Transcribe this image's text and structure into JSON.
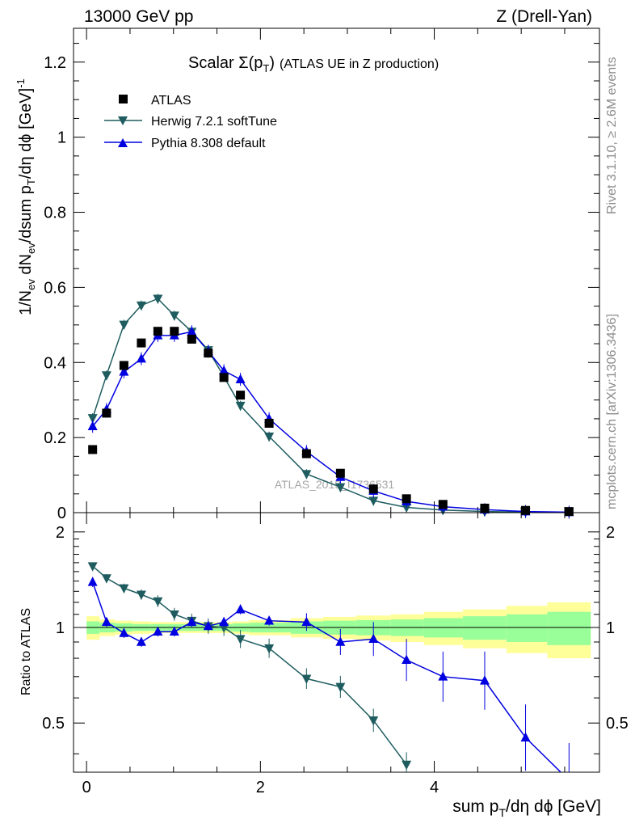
{
  "header": {
    "left": "13000 GeV pp",
    "right": "Z (Drell-Yan)"
  },
  "side_labels": {
    "rivet": "Rivet 3.1.10, ≥ 2.6M events",
    "mcplots": "mcplots.cern.ch [arXiv:1306.3436]"
  },
  "watermark": "ATLAS_2019_I1736531",
  "colors": {
    "atlas": "#000000",
    "herwig": "#1e5c5f",
    "pythia": "#0000e0",
    "band_stat": "#99ff99",
    "band_total": "#ffff99"
  },
  "chart_data": [
    {
      "type": "scatter",
      "title": "Scalar Σ(p_T) (ATLAS UE in Z production)",
      "xlabel": "sum p_T/dη dϕ [GeV]",
      "ylabel": "1/N_ev dN_ev/dsum p_T/dη dϕ [GeV]^-1",
      "xlim": [
        -0.15,
        5.9
      ],
      "ylim": [
        0,
        1.29
      ],
      "x_ticks": [
        "0",
        "2",
        "4"
      ],
      "y_ticks": [
        "0",
        "0.2",
        "0.4",
        "0.6",
        "0.8",
        "1",
        "1.2"
      ],
      "legend_position": "top-left",
      "series": [
        {
          "name": "ATLAS",
          "marker": "square",
          "x": [
            0.07,
            0.23,
            0.43,
            0.63,
            0.82,
            1.01,
            1.21,
            1.4,
            1.58,
            1.77,
            2.1,
            2.53,
            2.92,
            3.3,
            3.68,
            4.1,
            4.58,
            5.05,
            5.55
          ],
          "y": [
            0.168,
            0.265,
            0.392,
            0.452,
            0.483,
            0.483,
            0.462,
            0.425,
            0.36,
            0.313,
            0.238,
            0.157,
            0.105,
            0.063,
            0.037,
            0.022,
            0.012,
            0.006,
            0.003
          ]
        },
        {
          "name": "Herwig 7.2.1 softTune",
          "marker": "triangle-down",
          "x": [
            0.07,
            0.23,
            0.43,
            0.63,
            0.82,
            1.01,
            1.21,
            1.4,
            1.58,
            1.77,
            2.1,
            2.53,
            2.92,
            3.3,
            3.68,
            4.1,
            4.58,
            5.05,
            5.55
          ],
          "y": [
            0.252,
            0.366,
            0.501,
            0.552,
            0.57,
            0.525,
            0.482,
            0.433,
            0.362,
            0.285,
            0.203,
            0.103,
            0.068,
            0.032,
            0.014,
            0.007,
            0.003,
            0.0015,
            0.0006
          ]
        },
        {
          "name": "Pythia 8.308 default",
          "marker": "triangle-up",
          "x": [
            0.07,
            0.23,
            0.43,
            0.63,
            0.82,
            1.01,
            1.21,
            1.4,
            1.58,
            1.77,
            2.1,
            2.53,
            2.92,
            3.3,
            3.68,
            4.1,
            4.58,
            5.05,
            5.55
          ],
          "y": [
            0.23,
            0.275,
            0.375,
            0.41,
            0.472,
            0.472,
            0.482,
            0.43,
            0.378,
            0.355,
            0.25,
            0.163,
            0.095,
            0.058,
            0.03,
            0.016,
            0.008,
            0.003,
            0.0013
          ]
        }
      ]
    },
    {
      "type": "line",
      "ylabel": "Ratio to ATLAS",
      "xlim": [
        -0.15,
        5.9
      ],
      "ylim": [
        0.35,
        2.3
      ],
      "y_ticks": [
        "0.5",
        "1",
        "2"
      ],
      "bands": {
        "edges": [
          0,
          0.15,
          0.33,
          0.53,
          0.73,
          0.92,
          1.11,
          1.31,
          1.49,
          1.68,
          1.87,
          2.35,
          2.72,
          3.1,
          3.5,
          3.88,
          4.33,
          4.83,
          5.3,
          5.8
        ],
        "total_half_width": [
          0.085,
          0.06,
          0.05,
          0.045,
          0.04,
          0.04,
          0.04,
          0.04,
          0.04,
          0.045,
          0.055,
          0.07,
          0.08,
          0.09,
          0.1,
          0.12,
          0.14,
          0.17,
          0.2
        ],
        "stat_half_width": [
          0.045,
          0.035,
          0.03,
          0.025,
          0.025,
          0.025,
          0.025,
          0.025,
          0.025,
          0.03,
          0.035,
          0.045,
          0.05,
          0.055,
          0.06,
          0.07,
          0.085,
          0.1,
          0.12
        ]
      },
      "series": [
        {
          "name": "Herwig 7.2.1 softTune",
          "x": [
            0.07,
            0.23,
            0.43,
            0.63,
            0.82,
            1.01,
            1.21,
            1.4,
            1.58,
            1.77,
            2.1,
            2.53,
            2.92,
            3.3,
            3.68
          ],
          "y": [
            1.56,
            1.43,
            1.33,
            1.27,
            1.21,
            1.1,
            1.05,
            1.01,
            1.0,
            0.92,
            0.86,
            0.69,
            0.65,
            0.51,
            0.37
          ]
        },
        {
          "name": "Pythia 8.308 default",
          "x": [
            0.07,
            0.23,
            0.43,
            0.63,
            0.82,
            1.01,
            1.21,
            1.4,
            1.58,
            1.77,
            2.1,
            2.53,
            2.92,
            3.3,
            3.68,
            4.1,
            4.58,
            5.05,
            5.55
          ],
          "y": [
            1.39,
            1.04,
            0.96,
            0.9,
            0.97,
            0.97,
            1.04,
            1.01,
            1.04,
            1.14,
            1.05,
            1.04,
            0.9,
            0.92,
            0.79,
            0.7,
            0.68,
            0.45,
            0.33
          ]
        }
      ]
    }
  ]
}
